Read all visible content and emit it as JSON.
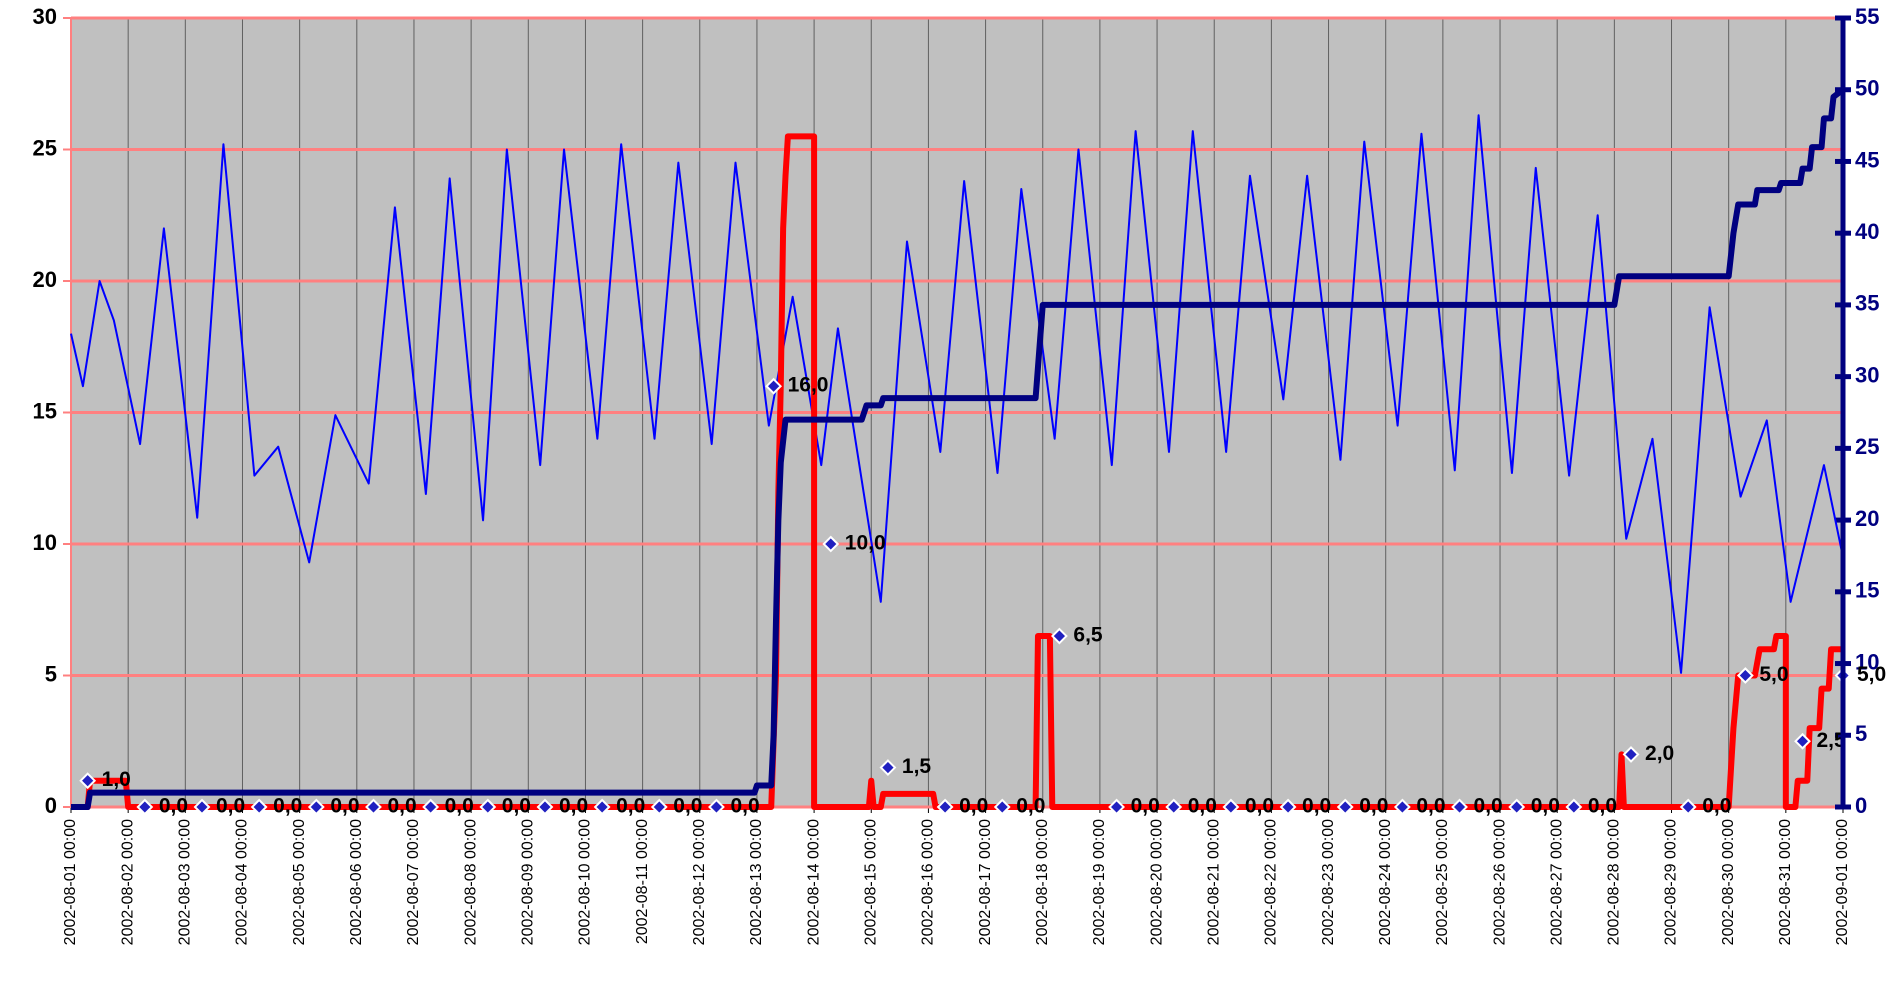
{
  "chart_data": {
    "type": "line",
    "xlim": [
      "2002-08-01 00:00",
      "2002-09-01 00:00"
    ],
    "xticks": [
      "2002-08-01 00:00",
      "2002-08-02 00:00",
      "2002-08-03 00:00",
      "2002-08-04 00:00",
      "2002-08-05 00:00",
      "2002-08-06 00:00",
      "2002-08-07 00:00",
      "2002-08-08 00:00",
      "2002-08-09 00:00",
      "2002-08-10 00:00",
      "2002-08-11 00:00",
      "2002-08-12 00:00",
      "2002-08-13 00:00",
      "2002-08-14 00:00",
      "2002-08-15 00:00",
      "2002-08-16 00:00",
      "2002-08-17 00:00",
      "2002-08-18 00:00",
      "2002-08-19 00:00",
      "2002-08-20 00:00",
      "2002-08-21 00:00",
      "2002-08-22 00:00",
      "2002-08-23 00:00",
      "2002-08-24 00:00",
      "2002-08-25 00:00",
      "2002-08-26 00:00",
      "2002-08-27 00:00",
      "2002-08-28 00:00",
      "2002-08-29 00:00",
      "2002-08-30 00:00",
      "2002-08-31 00:00",
      "2002-09-01 00:00"
    ],
    "ylim": [
      0,
      30
    ],
    "yticks": [
      0,
      5,
      10,
      15,
      20,
      25,
      30
    ],
    "y2lim": [
      0,
      55
    ],
    "y2ticks": [
      0,
      5,
      10,
      15,
      20,
      25,
      30,
      35,
      40,
      45,
      50,
      55
    ],
    "grid": true,
    "background": "#c0c0c0",
    "grid_color": "#ff8080",
    "vgrid_color": "#606060",
    "y2_color": "#000080",
    "series": [
      {
        "color": "#0000ff",
        "linestyle": "thin",
        "x": [
          "2002-08-01 00:00",
          "2002-08-01 05:00",
          "2002-08-01 12:00",
          "2002-08-01 18:00",
          "2002-08-02 05:00",
          "2002-08-02 15:00",
          "2002-08-03 05:00",
          "2002-08-03 16:00",
          "2002-08-04 05:00",
          "2002-08-04 15:00",
          "2002-08-05 04:00",
          "2002-08-05 15:00",
          "2002-08-06 05:00",
          "2002-08-06 16:00",
          "2002-08-07 05:00",
          "2002-08-07 15:00",
          "2002-08-08 05:00",
          "2002-08-08 15:00",
          "2002-08-09 05:00",
          "2002-08-09 15:00",
          "2002-08-10 05:00",
          "2002-08-10 15:00",
          "2002-08-11 05:00",
          "2002-08-11 15:00",
          "2002-08-12 05:00",
          "2002-08-12 15:00",
          "2002-08-13 05:00",
          "2002-08-13 15:00",
          "2002-08-14 03:00",
          "2002-08-14 10:00",
          "2002-08-15 04:00",
          "2002-08-15 15:00",
          "2002-08-16 05:00",
          "2002-08-16 15:00",
          "2002-08-17 05:00",
          "2002-08-17 15:00",
          "2002-08-18 05:00",
          "2002-08-18 15:00",
          "2002-08-19 05:00",
          "2002-08-19 15:00",
          "2002-08-20 05:00",
          "2002-08-20 15:00",
          "2002-08-21 05:00",
          "2002-08-21 15:00",
          "2002-08-22 05:00",
          "2002-08-22 15:00",
          "2002-08-23 05:00",
          "2002-08-23 15:00",
          "2002-08-24 05:00",
          "2002-08-24 15:00",
          "2002-08-25 05:00",
          "2002-08-25 15:00",
          "2002-08-26 05:00",
          "2002-08-26 15:00",
          "2002-08-27 05:00",
          "2002-08-27 17:00",
          "2002-08-28 05:00",
          "2002-08-28 16:00",
          "2002-08-29 04:00",
          "2002-08-29 16:00",
          "2002-08-30 05:00",
          "2002-08-30 16:00",
          "2002-08-31 02:00",
          "2002-08-31 16:00",
          "2002-09-01 00:00"
        ],
        "values": [
          18.0,
          16.0,
          20.0,
          18.5,
          13.8,
          22.0,
          11.0,
          25.2,
          12.6,
          13.7,
          9.3,
          14.9,
          12.3,
          22.8,
          11.9,
          23.9,
          10.9,
          25.0,
          13.0,
          25.0,
          14.0,
          25.2,
          14.0,
          24.5,
          13.8,
          24.5,
          14.5,
          19.4,
          13.0,
          18.2,
          7.8,
          21.5,
          13.5,
          23.8,
          12.7,
          23.5,
          14.0,
          25.0,
          13.0,
          25.7,
          13.5,
          25.7,
          13.5,
          24.0,
          15.5,
          24.0,
          13.2,
          25.3,
          14.5,
          25.6,
          12.8,
          26.3,
          12.7,
          24.3,
          12.6,
          22.5,
          10.2,
          14.0,
          5.1,
          19.0,
          11.8,
          14.7,
          7.8,
          13.0,
          9.5
        ]
      },
      {
        "color": "#ff0000",
        "linestyle": "thick",
        "x": [
          "2002-08-01 00:00",
          "2002-08-01 07:00",
          "2002-08-01 08:00",
          "2002-08-01 23:00",
          "2002-08-02 00:00",
          "2002-08-13 06:00",
          "2002-08-13 08:00",
          "2002-08-13 09:00",
          "2002-08-13 10:00",
          "2002-08-13 11:00",
          "2002-08-13 12:00",
          "2002-08-13 13:00",
          "2002-08-14 00:00",
          "2002-08-14 00:00",
          "2002-08-14 23:00",
          "2002-08-15 00:00",
          "2002-08-15 01:00",
          "2002-08-15 04:00",
          "2002-08-15 05:00",
          "2002-08-16 02:00",
          "2002-08-16 03:00",
          "2002-08-17 21:00",
          "2002-08-17 22:00",
          "2002-08-18 03:00",
          "2002-08-18 04:00",
          "2002-08-28 02:00",
          "2002-08-28 03:00",
          "2002-08-28 04:00",
          "2002-08-30 00:00",
          "2002-08-30 02:00",
          "2002-08-30 04:00",
          "2002-08-30 11:00",
          "2002-08-30 12:00",
          "2002-08-30 13:00",
          "2002-08-30 19:00",
          "2002-08-30 20:00",
          "2002-08-31 00:00",
          "2002-08-31 00:00",
          "2002-08-31 04:00",
          "2002-08-31 05:00",
          "2002-08-31 09:00",
          "2002-08-31 10:00",
          "2002-08-31 14:00",
          "2002-08-31 15:00",
          "2002-08-31 18:00",
          "2002-08-31 19:00",
          "2002-09-01 00:00"
        ],
        "values": [
          0,
          0,
          1.0,
          1.0,
          0,
          0,
          5.0,
          12.0,
          16.0,
          22.0,
          24.0,
          25.5,
          25.5,
          0,
          0,
          1.0,
          0,
          0,
          0.5,
          0.5,
          0,
          0,
          6.5,
          6.5,
          0,
          0,
          2.0,
          0,
          0,
          3.0,
          5.0,
          5.0,
          5.5,
          6.0,
          6.0,
          6.5,
          6.5,
          0,
          0,
          1.0,
          1.0,
          3.0,
          3.0,
          4.5,
          4.5,
          6.0,
          6.0
        ]
      },
      {
        "color": "#000080",
        "linestyle": "thick",
        "axis": "y2",
        "x": [
          "2002-08-01 00:00",
          "2002-08-01 07:00",
          "2002-08-01 08:00",
          "2002-08-12 23:00",
          "2002-08-13 00:00",
          "2002-08-13 06:00",
          "2002-08-13 07:00",
          "2002-08-13 08:00",
          "2002-08-13 09:00",
          "2002-08-13 10:00",
          "2002-08-13 12:00",
          "2002-08-14 20:00",
          "2002-08-14 22:00",
          "2002-08-15 04:00",
          "2002-08-15 05:00",
          "2002-08-17 21:00",
          "2002-08-18 00:00",
          "2002-08-28 00:00",
          "2002-08-28 02:00",
          "2002-08-30 00:00",
          "2002-08-30 02:00",
          "2002-08-30 04:00",
          "2002-08-30 11:00",
          "2002-08-30 12:00",
          "2002-08-30 21:00",
          "2002-08-30 22:00",
          "2002-08-31 06:00",
          "2002-08-31 07:00",
          "2002-08-31 10:00",
          "2002-08-31 11:00",
          "2002-08-31 15:00",
          "2002-08-31 16:00",
          "2002-08-31 19:00",
          "2002-08-31 20:00",
          "2002-09-01 00:00"
        ],
        "values": [
          0,
          0,
          1.0,
          1.0,
          1.5,
          1.5,
          5.0,
          13.0,
          20.0,
          24.0,
          27.0,
          27.0,
          28.0,
          28.0,
          28.5,
          28.5,
          35.0,
          35.0,
          37.0,
          37.0,
          40.0,
          42.0,
          42.0,
          43.0,
          43.0,
          43.5,
          43.5,
          44.5,
          44.5,
          46.0,
          46.0,
          48.0,
          48.0,
          49.5,
          50.0
        ]
      },
      {
        "color": "#2020c0",
        "marker": "diamond",
        "x": [
          "2002-08-01 07:00",
          "2002-08-02 07:00",
          "2002-08-03 07:00",
          "2002-08-04 07:00",
          "2002-08-05 07:00",
          "2002-08-06 07:00",
          "2002-08-07 07:00",
          "2002-08-08 07:00",
          "2002-08-09 07:00",
          "2002-08-10 07:00",
          "2002-08-11 07:00",
          "2002-08-12 07:00",
          "2002-08-13 07:00",
          "2002-08-14 07:00",
          "2002-08-15 07:00",
          "2002-08-16 07:00",
          "2002-08-17 07:00",
          "2002-08-18 07:00",
          "2002-08-19 07:00",
          "2002-08-20 07:00",
          "2002-08-21 07:00",
          "2002-08-22 07:00",
          "2002-08-23 07:00",
          "2002-08-24 07:00",
          "2002-08-25 07:00",
          "2002-08-26 07:00",
          "2002-08-27 07:00",
          "2002-08-28 07:00",
          "2002-08-29 07:00",
          "2002-08-30 07:00",
          "2002-08-31 07:00",
          "2002-09-01 00:00"
        ],
        "values": [
          1.0,
          0,
          0,
          0,
          0,
          0,
          0,
          0,
          0,
          0,
          0,
          0,
          16.0,
          10.0,
          1.5,
          0,
          0,
          6.5,
          0,
          0,
          0,
          0,
          0,
          0,
          0,
          0,
          0,
          2.0,
          0,
          5.0,
          2.5,
          5.0
        ],
        "value_labels": [
          "1,0",
          "0,0",
          "0,0",
          "0,0",
          "0,0",
          "0,0",
          "0,0",
          "0,0",
          "0,0",
          "0,0",
          "0,0",
          "0,0",
          "16,0",
          "10,0",
          "1,5",
          "0,0",
          "0,0",
          "6,5",
          "0,0",
          "0,0",
          "0,0",
          "0,0",
          "0,0",
          "0,0",
          "0,0",
          "0,0",
          "0,0",
          "2,0",
          "0,0",
          "5,0",
          "2,5",
          "5,0"
        ]
      }
    ]
  }
}
